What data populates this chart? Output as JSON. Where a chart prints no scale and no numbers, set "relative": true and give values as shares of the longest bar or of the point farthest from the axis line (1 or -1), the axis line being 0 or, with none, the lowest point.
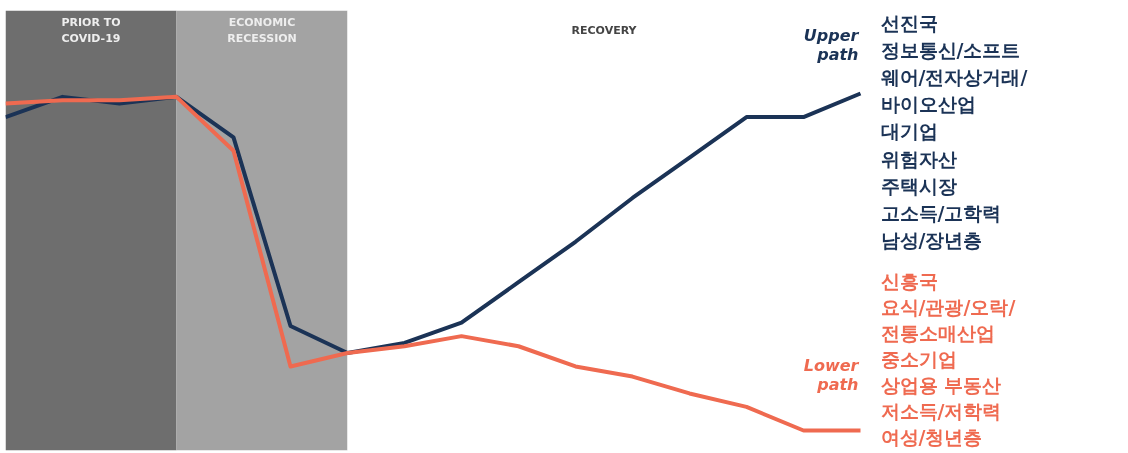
{
  "chart_data": {
    "type": "line",
    "relative": true,
    "categories": [
      null,
      null,
      null,
      null,
      null,
      null,
      null,
      null,
      null,
      null,
      null,
      null,
      null,
      null,
      null,
      null
    ],
    "grid": false,
    "legend": false,
    "series": [
      {
        "name": "Upper path",
        "color": "#1b3356",
        "values": [
          0.93,
          0.99,
          0.97,
          0.99,
          0.87,
          0.31,
          0.23,
          0.26,
          0.32,
          0.44,
          0.56,
          0.69,
          0.81,
          0.93,
          0.93,
          1.0
        ]
      },
      {
        "name": "Lower path",
        "color": "#ef6a50",
        "values": [
          0.97,
          0.98,
          0.98,
          0.99,
          0.83,
          0.19,
          0.23,
          0.25,
          0.28,
          0.25,
          0.19,
          0.16,
          0.11,
          0.07,
          0.0,
          0.0
        ]
      }
    ],
    "annotations": [
      "PRIOR TO\nCOVID-19",
      "ECONOMIC\nRECESSION",
      "RECOVERY",
      "선진국",
      "정보통신/소프트",
      "웨어/전자상거래/",
      "바이오산업",
      "대기업",
      "위험자산",
      "주택시장",
      "고소득/고학력",
      "남성/장년층",
      "신흥국",
      "요식/관광/오락/",
      "전통소매산업",
      "중소기업",
      "상업용 부동산",
      "저소득/저학력",
      "여성/청년층"
    ]
  }
}
